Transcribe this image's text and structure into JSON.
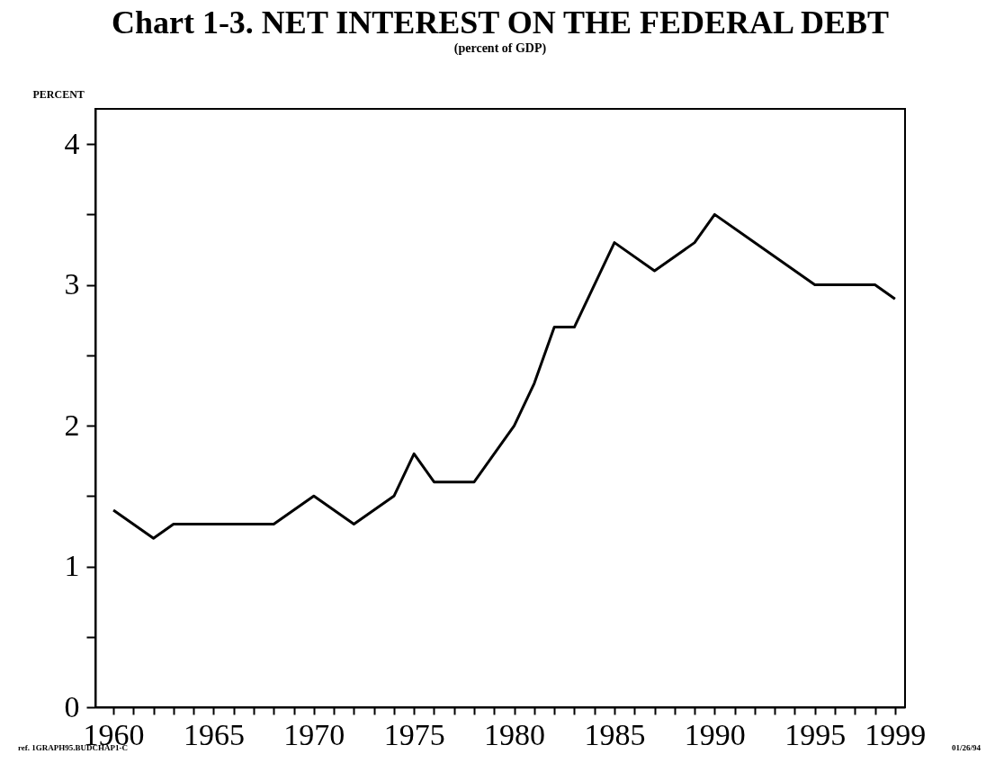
{
  "chart_data": {
    "type": "line",
    "title": "Chart 1-3. NET INTEREST ON THE FEDERAL DEBT",
    "subtitle": "(percent of GDP)",
    "ylabel": "PERCENT",
    "x": [
      1960,
      1962,
      1963,
      1968,
      1970,
      1972,
      1974,
      1975,
      1976,
      1978,
      1980,
      1981,
      1982,
      1983,
      1985,
      1987,
      1989,
      1990,
      1995,
      1998,
      1999
    ],
    "series": [
      {
        "color": "#000000",
        "values": [
          1.4,
          1.2,
          1.3,
          1.3,
          1.5,
          1.3,
          1.5,
          1.8,
          1.6,
          1.6,
          2.0,
          2.3,
          2.7,
          2.7,
          3.3,
          3.1,
          3.3,
          3.5,
          3.0,
          3.0,
          2.9
        ]
      }
    ],
    "xlim": [
      1959.1,
      1999.5
    ],
    "xticks": [
      1960,
      {
        "value": 1961,
        "label": null
      },
      {
        "value": 1962,
        "label": null
      },
      {
        "value": 1963,
        "label": null
      },
      {
        "value": 1964,
        "label": null
      },
      1965,
      {
        "value": 1966,
        "label": null
      },
      {
        "value": 1967,
        "label": null
      },
      {
        "value": 1968,
        "label": null
      },
      {
        "value": 1969,
        "label": null
      },
      1970,
      {
        "value": 1971,
        "label": null
      },
      {
        "value": 1972,
        "label": null
      },
      {
        "value": 1973,
        "label": null
      },
      {
        "value": 1974,
        "label": null
      },
      1975,
      {
        "value": 1976,
        "label": null
      },
      {
        "value": 1977,
        "label": null
      },
      {
        "value": 1978,
        "label": null
      },
      {
        "value": 1979,
        "label": null
      },
      1980,
      {
        "value": 1981,
        "label": null
      },
      {
        "value": 1982,
        "label": null
      },
      {
        "value": 1983,
        "label": null
      },
      {
        "value": 1984,
        "label": null
      },
      1985,
      {
        "value": 1986,
        "label": null
      },
      {
        "value": 1987,
        "label": null
      },
      {
        "value": 1988,
        "label": null
      },
      {
        "value": 1989,
        "label": null
      },
      1990,
      {
        "value": 1991,
        "label": null
      },
      {
        "value": 1992,
        "label": null
      },
      {
        "value": 1993,
        "label": null
      },
      {
        "value": 1994,
        "label": null
      },
      1995,
      {
        "value": 1996,
        "label": null
      },
      {
        "value": 1997,
        "label": null
      },
      {
        "value": 1998,
        "label": null
      },
      1999
    ],
    "ylim": [
      0,
      4.25
    ],
    "yticks": [
      0,
      {
        "value": 0.5,
        "label": null
      },
      1,
      {
        "value": 1.5,
        "label": null
      },
      2,
      {
        "value": 2.5,
        "label": null
      },
      3,
      {
        "value": 3.5,
        "label": null
      },
      4
    ],
    "grid": false,
    "legend": false,
    "marker": "none",
    "line_style": "solid",
    "annotations": [
      "ref. 1GRAPH95.BUDCHAP1-C",
      "01/26/94"
    ]
  }
}
